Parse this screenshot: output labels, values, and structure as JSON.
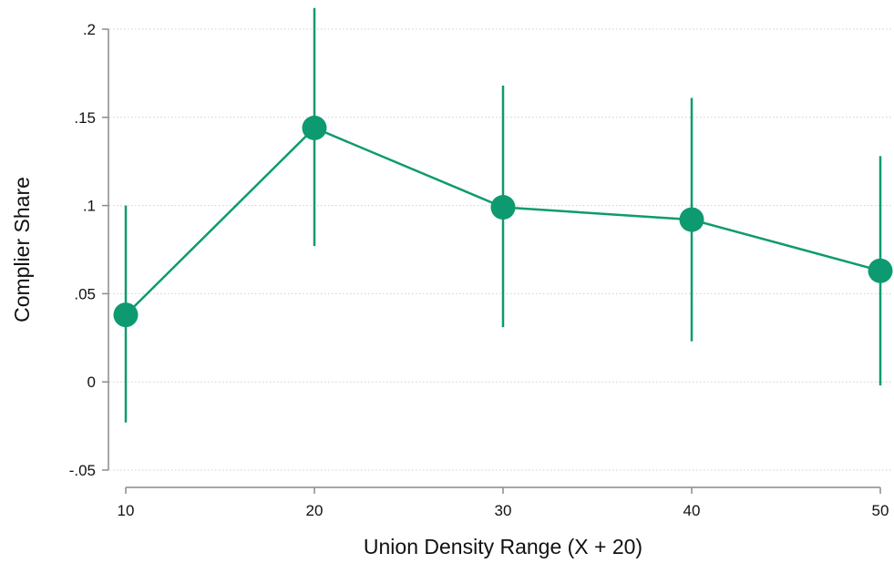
{
  "chart_data": {
    "type": "line",
    "title": "",
    "xlabel": "Union Density Range (X + 20)",
    "ylabel": "Complier Share",
    "xlim": [
      10,
      50
    ],
    "ylim": [
      -0.05,
      0.2
    ],
    "x_ticks": [
      10,
      20,
      30,
      40,
      50
    ],
    "x_tick_labels": [
      "10",
      "20",
      "30",
      "40",
      "50"
    ],
    "y_ticks": [
      -0.05,
      0,
      0.05,
      0.1,
      0.15,
      0.2
    ],
    "y_tick_labels": [
      "-.05",
      "0",
      ".05",
      ".1",
      ".15",
      ".2"
    ],
    "grid": "horizontal dotted",
    "series": [
      {
        "x": [
          10,
          20,
          30,
          40,
          50
        ],
        "values": [
          0.038,
          0.144,
          0.099,
          0.092,
          0.063
        ],
        "ci_lower": [
          -0.023,
          0.077,
          0.031,
          0.023,
          -0.002
        ],
        "ci_upper": [
          0.1,
          0.212,
          0.168,
          0.161,
          0.128
        ],
        "color": "#0e9a70"
      }
    ]
  }
}
